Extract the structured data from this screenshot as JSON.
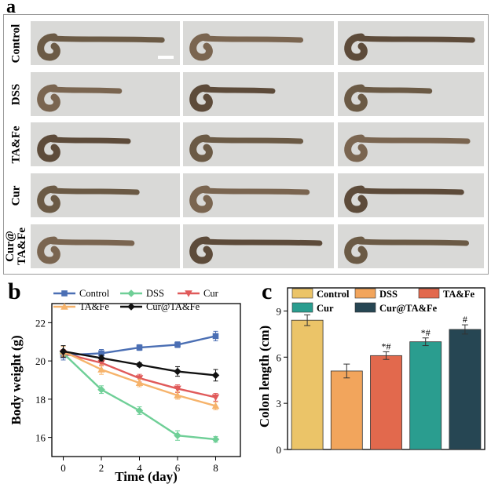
{
  "panel_a": {
    "letter": "a",
    "rows": [
      {
        "label": "Control",
        "lengths": [
          0.92,
          0.8,
          0.97
        ]
      },
      {
        "label": "DSS",
        "lengths": [
          0.58,
          0.58,
          0.62
        ]
      },
      {
        "label": "TA&Fe",
        "lengths": [
          0.65,
          0.8,
          0.93
        ]
      },
      {
        "label": "Cur",
        "lengths": [
          0.72,
          0.85,
          0.88
        ]
      },
      {
        "label": "Cur@\nTA&Fe",
        "lengths": [
          0.68,
          0.95,
          0.92
        ]
      }
    ]
  },
  "chart_data": [
    {
      "panel": "b",
      "type": "line",
      "xlabel": "Time (day)",
      "ylabel": "Body weight (g)",
      "xlim": [
        -0.6,
        9.3
      ],
      "ylim": [
        15,
        23
      ],
      "xticks": [
        0,
        2,
        4,
        6,
        8
      ],
      "yticks": [
        16,
        18,
        20,
        22
      ],
      "legend_position": "top",
      "series": [
        {
          "name": "Control",
          "color": "#4b6fb4",
          "marker": "square",
          "x": [
            0,
            2,
            4,
            6,
            8
          ],
          "y": [
            20.3,
            20.4,
            20.7,
            20.85,
            21.3
          ],
          "err": [
            0.25,
            0.2,
            0.15,
            0.15,
            0.25
          ]
        },
        {
          "name": "DSS",
          "color": "#6fcf97",
          "marker": "diamond",
          "x": [
            0,
            2,
            4,
            6,
            8
          ],
          "y": [
            20.4,
            18.5,
            17.4,
            16.1,
            15.9
          ],
          "err": [
            0.2,
            0.2,
            0.2,
            0.25,
            0.15
          ]
        },
        {
          "name": "Cur",
          "color": "#e05a5a",
          "marker": "triangle-down",
          "x": [
            0,
            2,
            4,
            6,
            8
          ],
          "y": [
            20.4,
            19.9,
            19.1,
            18.55,
            18.1
          ],
          "err": [
            0.2,
            0.15,
            0.2,
            0.2,
            0.2
          ]
        },
        {
          "name": "TA&Fe",
          "color": "#f6b36b",
          "marker": "triangle-up",
          "x": [
            0,
            2,
            4,
            6,
            8
          ],
          "y": [
            20.5,
            19.55,
            18.85,
            18.2,
            17.65
          ],
          "err": [
            0.25,
            0.25,
            0.2,
            0.2,
            0.2
          ]
        },
        {
          "name": "Cur@TA&Fe",
          "color": "#111111",
          "marker": "diamond",
          "x": [
            0,
            2,
            4,
            6,
            8
          ],
          "y": [
            20.5,
            20.15,
            19.8,
            19.45,
            19.25
          ],
          "err": [
            0.3,
            0.15,
            0.1,
            0.25,
            0.3
          ]
        }
      ]
    },
    {
      "panel": "c",
      "type": "bar",
      "xlabel": "",
      "ylabel": "Colon length (cm)",
      "ylim": [
        0,
        10.5
      ],
      "yticks": [
        0,
        3,
        6,
        9
      ],
      "legend_position": "top",
      "categories": [
        "Control",
        "DSS",
        "TA&Fe",
        "Cur",
        "Cur@TA&Fe"
      ],
      "values": [
        8.4,
        5.1,
        6.1,
        7.0,
        7.8
      ],
      "errors": [
        0.35,
        0.45,
        0.25,
        0.25,
        0.3
      ],
      "colors": [
        "#ebc468",
        "#f2a55c",
        "#e2694d",
        "#2a9d8f",
        "#264653"
      ],
      "annotations": [
        "",
        "",
        "*#",
        "*#",
        "#"
      ]
    }
  ]
}
